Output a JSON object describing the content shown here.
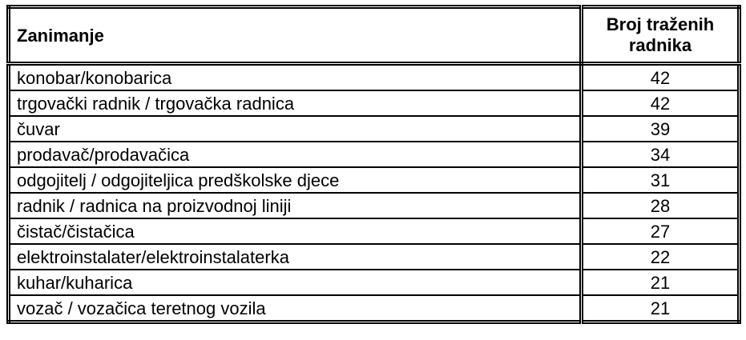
{
  "table": {
    "headers": [
      "Zanimanje",
      "Broj traženih radnika"
    ],
    "rows": [
      {
        "occupation": "konobar/konobarica",
        "count": "42"
      },
      {
        "occupation": "trgovački radnik / trgovačka radnica",
        "count": "42"
      },
      {
        "occupation": "čuvar",
        "count": "39"
      },
      {
        "occupation": "prodavač/prodavačica",
        "count": "34"
      },
      {
        "occupation": "odgojitelj / odgojiteljica predškolske djece",
        "count": "31"
      },
      {
        "occupation": "radnik / radnica na proizvodnoj liniji",
        "count": "28"
      },
      {
        "occupation": "čistač/čistačica",
        "count": "27"
      },
      {
        "occupation": "elektroinstalater/elektroinstalaterka",
        "count": "22"
      },
      {
        "occupation": "kuhar/kuharica",
        "count": "21"
      },
      {
        "occupation": "vozač / vozačica teretnog vozila",
        "count": "21"
      }
    ]
  }
}
